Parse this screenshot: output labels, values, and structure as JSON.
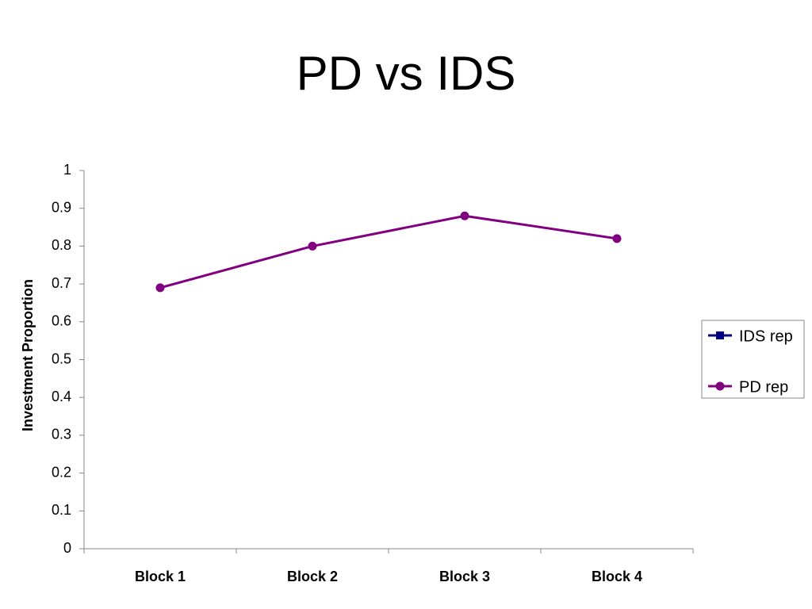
{
  "chart_data": {
    "type": "line",
    "title": "PD vs IDS",
    "y_label": "Investment Proportion",
    "categories": [
      "Block 1",
      "Block 2",
      "Block 3",
      "Block 4"
    ],
    "series": [
      {
        "name": "IDS rep",
        "color": "#000080",
        "marker": "square",
        "values": [
          null,
          null,
          null,
          null
        ]
      },
      {
        "name": "PD rep",
        "color": "#800080",
        "marker": "circle",
        "values": [
          0.69,
          0.8,
          0.88,
          0.82
        ]
      }
    ],
    "ylim": [
      0,
      1
    ],
    "yticks": [
      0,
      0.1,
      0.2,
      0.3,
      0.4,
      0.5,
      0.6,
      0.7,
      0.8,
      0.9,
      1
    ],
    "grid": false,
    "legend": "right"
  }
}
